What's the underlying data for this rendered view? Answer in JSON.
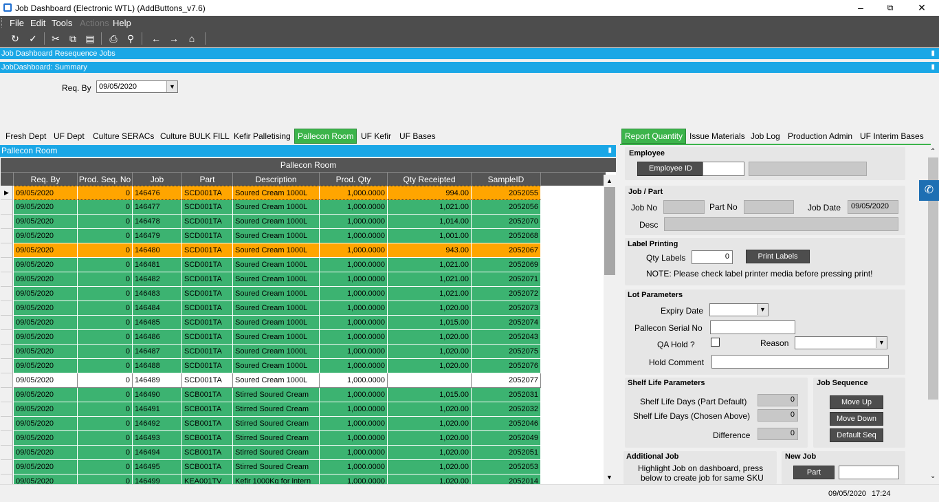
{
  "window": {
    "title": "Job Dashboard (Electronic WTL) (AddButtons_v7.6)"
  },
  "menu": [
    "File",
    "Edit",
    "Tools",
    "Actions",
    "Help"
  ],
  "panels": {
    "resequence": "Job Dashboard Resequence Jobs",
    "summary": "JobDashboard: Summary"
  },
  "summary": {
    "req_by_label": "Req. By",
    "req_by_value": "09/05/2020"
  },
  "left_tabs": [
    "Fresh Dept",
    "UF Dept",
    "Culture SERACs",
    "Culture BULK FILL",
    "Kefir Palletising",
    "Pallecon Room",
    "UF Kefir",
    "UF Bases"
  ],
  "right_tabs": [
    "Report Quantity",
    "Issue Materials",
    "Job Log",
    "Production Admin",
    "UF Interim Bases"
  ],
  "pallecon": {
    "bar_title": "Pallecon Room",
    "grid_title": "Pallecon Room",
    "columns": [
      "Req. By",
      "Prod. Seq. No",
      "Job",
      "Part",
      "Description",
      "Prod. Qty",
      "Qty Receipted",
      "SampleID"
    ],
    "rows": [
      {
        "req": "09/05/2020",
        "seq": "0",
        "job": "146476",
        "part": "SCD001TA",
        "desc": "Soured Cream 1000L",
        "qty": "1,000.0000",
        "rec": "994.00",
        "sample": "2052055",
        "color": "#ffa500",
        "current": true
      },
      {
        "req": "09/05/2020",
        "seq": "0",
        "job": "146477",
        "part": "SCD001TA",
        "desc": "Soured Cream 1000L",
        "qty": "1,000.0000",
        "rec": "1,021.00",
        "sample": "2052056",
        "color": "#3cb371"
      },
      {
        "req": "09/05/2020",
        "seq": "0",
        "job": "146478",
        "part": "SCD001TA",
        "desc": "Soured Cream 1000L",
        "qty": "1,000.0000",
        "rec": "1,014.00",
        "sample": "2052070",
        "color": "#3cb371"
      },
      {
        "req": "09/05/2020",
        "seq": "0",
        "job": "146479",
        "part": "SCD001TA",
        "desc": "Soured Cream 1000L",
        "qty": "1,000.0000",
        "rec": "1,001.00",
        "sample": "2052068",
        "color": "#3cb371"
      },
      {
        "req": "09/05/2020",
        "seq": "0",
        "job": "146480",
        "part": "SCD001TA",
        "desc": "Soured Cream 1000L",
        "qty": "1,000.0000",
        "rec": "943.00",
        "sample": "2052067",
        "color": "#ffa500"
      },
      {
        "req": "09/05/2020",
        "seq": "0",
        "job": "146481",
        "part": "SCD001TA",
        "desc": "Soured Cream 1000L",
        "qty": "1,000.0000",
        "rec": "1,021.00",
        "sample": "2052069",
        "color": "#3cb371"
      },
      {
        "req": "09/05/2020",
        "seq": "0",
        "job": "146482",
        "part": "SCD001TA",
        "desc": "Soured Cream 1000L",
        "qty": "1,000.0000",
        "rec": "1,021.00",
        "sample": "2052071",
        "color": "#3cb371"
      },
      {
        "req": "09/05/2020",
        "seq": "0",
        "job": "146483",
        "part": "SCD001TA",
        "desc": "Soured Cream 1000L",
        "qty": "1,000.0000",
        "rec": "1,021.00",
        "sample": "2052072",
        "color": "#3cb371"
      },
      {
        "req": "09/05/2020",
        "seq": "0",
        "job": "146484",
        "part": "SCD001TA",
        "desc": "Soured Cream 1000L",
        "qty": "1,000.0000",
        "rec": "1,020.00",
        "sample": "2052073",
        "color": "#3cb371"
      },
      {
        "req": "09/05/2020",
        "seq": "0",
        "job": "146485",
        "part": "SCD001TA",
        "desc": "Soured Cream 1000L",
        "qty": "1,000.0000",
        "rec": "1,015.00",
        "sample": "2052074",
        "color": "#3cb371"
      },
      {
        "req": "09/05/2020",
        "seq": "0",
        "job": "146486",
        "part": "SCD001TA",
        "desc": "Soured Cream 1000L",
        "qty": "1,000.0000",
        "rec": "1,020.00",
        "sample": "2052043",
        "color": "#3cb371"
      },
      {
        "req": "09/05/2020",
        "seq": "0",
        "job": "146487",
        "part": "SCD001TA",
        "desc": "Soured Cream 1000L",
        "qty": "1,000.0000",
        "rec": "1,020.00",
        "sample": "2052075",
        "color": "#3cb371"
      },
      {
        "req": "09/05/2020",
        "seq": "0",
        "job": "146488",
        "part": "SCD001TA",
        "desc": "Soured Cream 1000L",
        "qty": "1,000.0000",
        "rec": "1,020.00",
        "sample": "2052076",
        "color": "#3cb371"
      },
      {
        "req": "09/05/2020",
        "seq": "0",
        "job": "146489",
        "part": "SCD001TA",
        "desc": "Soured Cream 1000L",
        "qty": "1,000.0000",
        "rec": "",
        "sample": "2052077",
        "color": "#ffffff"
      },
      {
        "req": "09/05/2020",
        "seq": "0",
        "job": "146490",
        "part": "SCB001TA",
        "desc": "Stirred Soured Cream",
        "qty": "1,000.0000",
        "rec": "1,015.00",
        "sample": "2052031",
        "color": "#3cb371"
      },
      {
        "req": "09/05/2020",
        "seq": "0",
        "job": "146491",
        "part": "SCB001TA",
        "desc": "Stirred Soured Cream",
        "qty": "1,000.0000",
        "rec": "1,020.00",
        "sample": "2052032",
        "color": "#3cb371"
      },
      {
        "req": "09/05/2020",
        "seq": "0",
        "job": "146492",
        "part": "SCB001TA",
        "desc": "Stirred Soured Cream",
        "qty": "1,000.0000",
        "rec": "1,020.00",
        "sample": "2052046",
        "color": "#3cb371"
      },
      {
        "req": "09/05/2020",
        "seq": "0",
        "job": "146493",
        "part": "SCB001TA",
        "desc": "Stirred Soured Cream",
        "qty": "1,000.0000",
        "rec": "1,020.00",
        "sample": "2052049",
        "color": "#3cb371"
      },
      {
        "req": "09/05/2020",
        "seq": "0",
        "job": "146494",
        "part": "SCB001TA",
        "desc": "Stirred Soured Cream",
        "qty": "1,000.0000",
        "rec": "1,020.00",
        "sample": "2052051",
        "color": "#3cb371"
      },
      {
        "req": "09/05/2020",
        "seq": "0",
        "job": "146495",
        "part": "SCB001TA",
        "desc": "Stirred Soured Cream",
        "qty": "1,000.0000",
        "rec": "1,020.00",
        "sample": "2052053",
        "color": "#3cb371"
      },
      {
        "req": "09/05/2020",
        "seq": "0",
        "job": "146499",
        "part": "KEA001TV",
        "desc": "Kefir 1000Kg for intern",
        "qty": "1,000.0000",
        "rec": "1,020.00",
        "sample": "2052014",
        "color": "#3cb371"
      }
    ]
  },
  "report": {
    "employee": {
      "title": "Employee",
      "button": "Employee ID",
      "id_value": "",
      "name_value": ""
    },
    "jobpart": {
      "title": "Job / Part",
      "job_label": "Job No",
      "part_label": "Part No",
      "date_label": "Job Date",
      "date_value": "09/05/2020",
      "desc_label": "Desc",
      "job_value": "",
      "part_value": "",
      "desc_value": ""
    },
    "label": {
      "title": "Label Printing",
      "qty_label": "Qty Labels",
      "qty_value": "0",
      "button": "Print Labels",
      "note": "NOTE:  Please check label printer media before pressing print!"
    },
    "lot": {
      "title": "Lot Parameters",
      "expiry_label": "Expiry Date",
      "serial_label": "Pallecon Serial No",
      "qa_label": "QA Hold ?",
      "reason_label": "Reason",
      "hold_label": "Hold Comment",
      "expiry_value": "",
      "serial_value": "",
      "reason_value": "",
      "hold_value": ""
    },
    "shelf": {
      "title": "Shelf Life Parameters",
      "default_label": "Shelf Life Days (Part Default)",
      "default_value": "0",
      "chosen_label": "Shelf Life Days (Chosen Above)",
      "chosen_value": "0",
      "diff_label": "Difference",
      "diff_value": "0"
    },
    "jobseq": {
      "title": "Job Sequence",
      "up": "Move Up",
      "down": "Move Down",
      "default": "Default Seq"
    },
    "additional": {
      "title": "Additional Job",
      "text1": "Highlight Job on dashboard, press",
      "text2": "below to create job for same SKU"
    },
    "newjob": {
      "title": "New Job",
      "button": "Part",
      "value": ""
    }
  },
  "status": {
    "date": "09/05/2020",
    "time": "17:24"
  }
}
